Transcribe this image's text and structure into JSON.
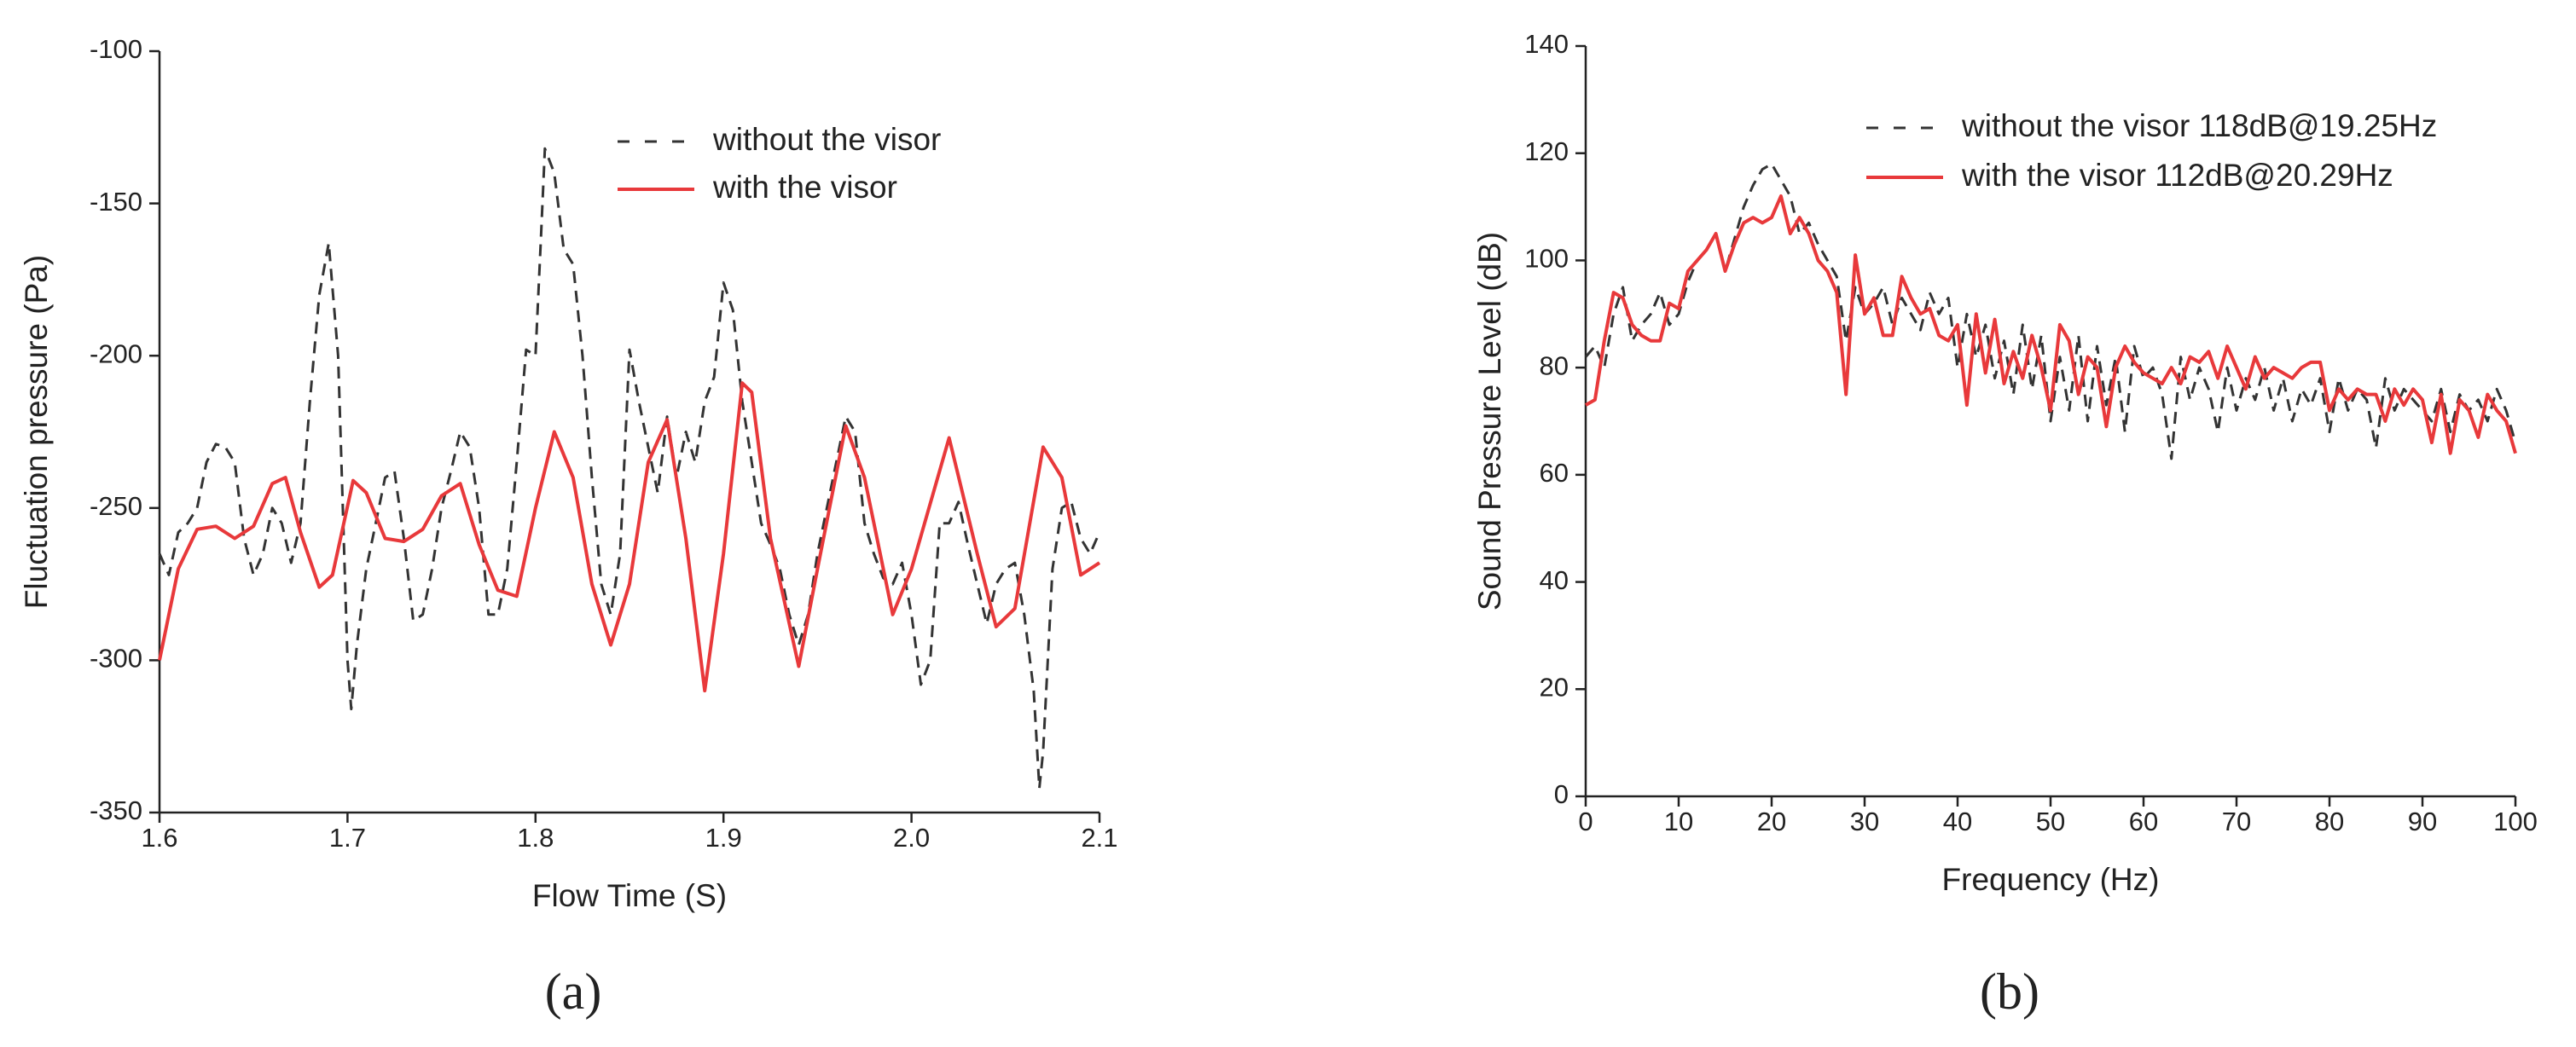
{
  "chart_data": [
    {
      "type": "line",
      "label": "(a)",
      "xlabel": "Flow Time (S)",
      "ylabel": "Fluctuation pressure (Pa)",
      "xlim": [
        1.6,
        2.1
      ],
      "xticks": [
        1.6,
        1.7,
        1.8,
        1.9,
        {
          "value": 2,
          "label": "2.0"
        },
        2.1
      ],
      "ylim": [
        -350,
        -100
      ],
      "yticks": [
        -350,
        -300,
        -250,
        -200,
        -150,
        -100
      ],
      "series": [
        {
          "name": "without the visor",
          "color": "#333333",
          "dash": true,
          "x": [
            1.6,
            1.605,
            1.61,
            1.615,
            1.62,
            1.625,
            1.63,
            1.635,
            1.64,
            1.645,
            1.65,
            1.655,
            1.66,
            1.665,
            1.67,
            1.675,
            1.68,
            1.685,
            1.69,
            1.695,
            1.7,
            1.702,
            1.705,
            1.71,
            1.715,
            1.72,
            1.725,
            1.73,
            1.735,
            1.74,
            1.745,
            1.75,
            1.755,
            1.76,
            1.765,
            1.77,
            1.775,
            1.78,
            1.785,
            1.79,
            1.795,
            1.8,
            1.803,
            1.805,
            1.81,
            1.815,
            1.82,
            1.825,
            1.83,
            1.835,
            1.84,
            1.845,
            1.85,
            1.855,
            1.86,
            1.865,
            1.87,
            1.875,
            1.88,
            1.885,
            1.89,
            1.895,
            1.9,
            1.905,
            1.91,
            1.915,
            1.92,
            1.925,
            1.93,
            1.935,
            1.94,
            1.945,
            1.95,
            1.955,
            1.96,
            1.965,
            1.97,
            1.975,
            1.98,
            1.985,
            1.99,
            1.995,
            2.0,
            2.005,
            2.01,
            2.015,
            2.02,
            2.025,
            2.03,
            2.035,
            2.04,
            2.045,
            2.05,
            2.055,
            2.06,
            2.065,
            2.068,
            2.07,
            2.075,
            2.08,
            2.085,
            2.09,
            2.095,
            2.1
          ],
          "values": [
            -265,
            -272,
            -258,
            -255,
            -250,
            -235,
            -229,
            -230,
            -235,
            -260,
            -272,
            -265,
            -250,
            -255,
            -268,
            -255,
            -215,
            -180,
            -163,
            -200,
            -300,
            -316,
            -295,
            -270,
            -255,
            -240,
            -238,
            -260,
            -287,
            -285,
            -270,
            -250,
            -238,
            -225,
            -230,
            -250,
            -285,
            -285,
            -270,
            -235,
            -198,
            -200,
            -160,
            -132,
            -140,
            -165,
            -170,
            -200,
            -240,
            -275,
            -285,
            -265,
            -198,
            -215,
            -230,
            -245,
            -220,
            -240,
            -225,
            -235,
            -215,
            -207,
            -176,
            -185,
            -215,
            -235,
            -255,
            -262,
            -270,
            -285,
            -295,
            -285,
            -265,
            -250,
            -235,
            -220,
            -225,
            -255,
            -265,
            -273,
            -275,
            -268,
            -285,
            -308,
            -300,
            -255,
            -255,
            -248,
            -262,
            -275,
            -288,
            -275,
            -270,
            -268,
            -285,
            -310,
            -342,
            -330,
            -270,
            -250,
            -248,
            -260,
            -265,
            -258
          ]
        },
        {
          "name": "with the visor",
          "color": "#e8393b",
          "dash": false,
          "x": [
            1.6,
            1.61,
            1.62,
            1.63,
            1.64,
            1.65,
            1.66,
            1.667,
            1.675,
            1.685,
            1.692,
            1.703,
            1.71,
            1.72,
            1.73,
            1.74,
            1.75,
            1.76,
            1.77,
            1.78,
            1.79,
            1.8,
            1.81,
            1.82,
            1.83,
            1.84,
            1.85,
            1.86,
            1.87,
            1.88,
            1.89,
            1.9,
            1.91,
            1.915,
            1.925,
            1.94,
            1.95,
            1.965,
            1.975,
            1.99,
            2.0,
            2.02,
            2.035,
            2.045,
            2.055,
            2.07,
            2.08,
            2.09,
            2.1
          ],
          "values": [
            -300,
            -270,
            -257,
            -256,
            -260,
            -256,
            -242,
            -240,
            -258,
            -276,
            -272,
            -241,
            -245,
            -260,
            -261,
            -257,
            -246,
            -242,
            -262,
            -277,
            -279,
            -250,
            -225,
            -240,
            -275,
            -295,
            -275,
            -235,
            -221,
            -260,
            -310,
            -265,
            -209,
            -212,
            -260,
            -302,
            -270,
            -223,
            -240,
            -285,
            -270,
            -227,
            -265,
            -289,
            -283,
            -230,
            -240,
            -272,
            -268
          ]
        }
      ]
    },
    {
      "type": "line",
      "label": "(b)",
      "xlabel": "Frequency (Hz)",
      "ylabel": "Sound Pressure Level (dB)",
      "xlim": [
        0,
        100
      ],
      "xticks": [
        0,
        10,
        20,
        30,
        40,
        50,
        60,
        70,
        80,
        90,
        100
      ],
      "ylim": [
        0,
        140
      ],
      "yticks": [
        0,
        20,
        40,
        60,
        80,
        100,
        120,
        140
      ],
      "x": [
        0,
        1,
        2,
        3,
        4,
        5,
        6,
        7,
        8,
        9,
        10,
        11,
        12,
        13,
        14,
        15,
        16,
        17,
        18,
        19,
        20,
        21,
        22,
        23,
        24,
        25,
        26,
        27,
        28,
        29,
        30,
        31,
        32,
        33,
        34,
        35,
        36,
        37,
        38,
        39,
        40,
        41,
        42,
        43,
        44,
        45,
        46,
        47,
        48,
        49,
        50,
        51,
        52,
        53,
        54,
        55,
        56,
        57,
        58,
        59,
        60,
        61,
        62,
        63,
        64,
        65,
        66,
        67,
        68,
        69,
        70,
        71,
        72,
        73,
        74,
        75,
        76,
        77,
        78,
        79,
        80,
        81,
        82,
        83,
        84,
        85,
        86,
        87,
        88,
        89,
        90,
        91,
        92,
        93,
        94,
        95,
        96,
        97,
        98,
        99,
        100
      ],
      "series": [
        {
          "name": "without the visor 118dB@19.25Hz",
          "color": "#333333",
          "dash": true,
          "values": [
            82,
            84,
            80,
            90,
            95,
            85,
            88,
            90,
            94,
            88,
            90,
            96,
            100,
            102,
            105,
            98,
            104,
            110,
            114,
            117,
            118,
            115,
            112,
            105,
            107,
            103,
            100,
            97,
            85,
            95,
            90,
            92,
            95,
            88,
            93,
            90,
            87,
            94,
            90,
            93,
            80,
            90,
            82,
            88,
            78,
            85,
            75,
            88,
            76,
            86,
            70,
            82,
            72,
            86,
            70,
            84,
            73,
            82,
            68,
            84,
            78,
            80,
            75,
            63,
            82,
            74,
            80,
            76,
            68,
            80,
            72,
            78,
            74,
            80,
            72,
            78,
            70,
            76,
            73,
            78,
            68,
            78,
            72,
            76,
            74,
            65,
            78,
            72,
            76,
            74,
            72,
            70,
            76,
            68,
            75,
            72,
            74,
            70,
            76,
            72,
            66
          ]
        },
        {
          "name": "with the visor 112dB@20.29Hz",
          "color": "#e8393b",
          "dash": false,
          "values": [
            73,
            74,
            85,
            94,
            93,
            88,
            86,
            85,
            85,
            92,
            91,
            98,
            100,
            102,
            105,
            98,
            103,
            107,
            108,
            107,
            108,
            112,
            105,
            108,
            105,
            100,
            98,
            94,
            75,
            101,
            90,
            93,
            86,
            86,
            97,
            93,
            90,
            91,
            86,
            85,
            88,
            73,
            90,
            79,
            89,
            77,
            83,
            78,
            86,
            80,
            72,
            88,
            85,
            75,
            82,
            80,
            69,
            80,
            84,
            81,
            79,
            78,
            77,
            80,
            77,
            82,
            81,
            83,
            78,
            84,
            80,
            76,
            82,
            78,
            80,
            79,
            78,
            80,
            81,
            81,
            72,
            76,
            74,
            76,
            75,
            75,
            70,
            76,
            73,
            76,
            74,
            66,
            75,
            64,
            74,
            72,
            67,
            75,
            72,
            70,
            64
          ]
        }
      ]
    }
  ]
}
